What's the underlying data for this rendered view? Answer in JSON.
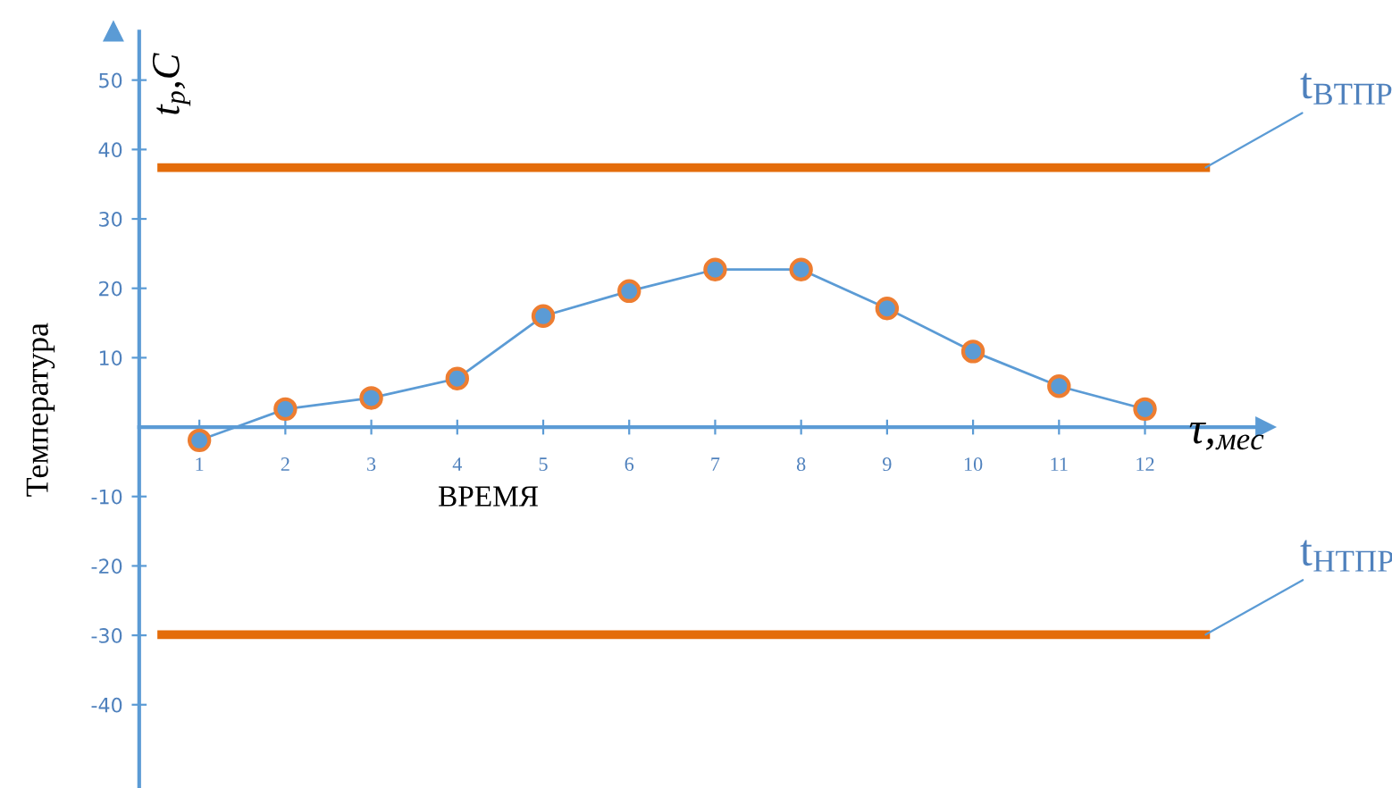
{
  "chart_data": {
    "type": "line",
    "xlabel": "ВРЕМЯ",
    "ylabel": "Температура",
    "annotations": [
      "t$_{р}$,C",
      "τ,$_{мес}$"
    ],
    "x": [
      1,
      2,
      3,
      4,
      5,
      6,
      7,
      8,
      9,
      10,
      11,
      12
    ],
    "series": [
      {
        "color": "#5b9bd5",
        "values": [
          -1.9,
          2.6,
          4.2,
          7.0,
          16.0,
          19.6,
          22.7,
          22.7,
          17.1,
          10.9,
          5.9,
          2.6
        ]
      }
    ],
    "marker": "circle",
    "line_style": "solid",
    "xlim": [
      0.3,
      13.4
    ],
    "xticks": [
      1,
      2,
      3,
      4,
      5,
      6,
      7,
      8,
      9,
      10,
      11,
      12
    ],
    "ylim": [
      -52,
      57
    ],
    "yticks": [
      -40,
      -30,
      -20,
      -10,
      10,
      20,
      30,
      40,
      50
    ],
    "ref_lines": [
      {
        "axis": "y",
        "value": 37.4,
        "label": "t$_{ВТПР}$",
        "color": "#e46c0a"
      },
      {
        "axis": "y",
        "value": -29.9,
        "label": "t$_{НТПР}$",
        "color": "#e46c0a"
      }
    ],
    "grid": false,
    "legend": false
  }
}
